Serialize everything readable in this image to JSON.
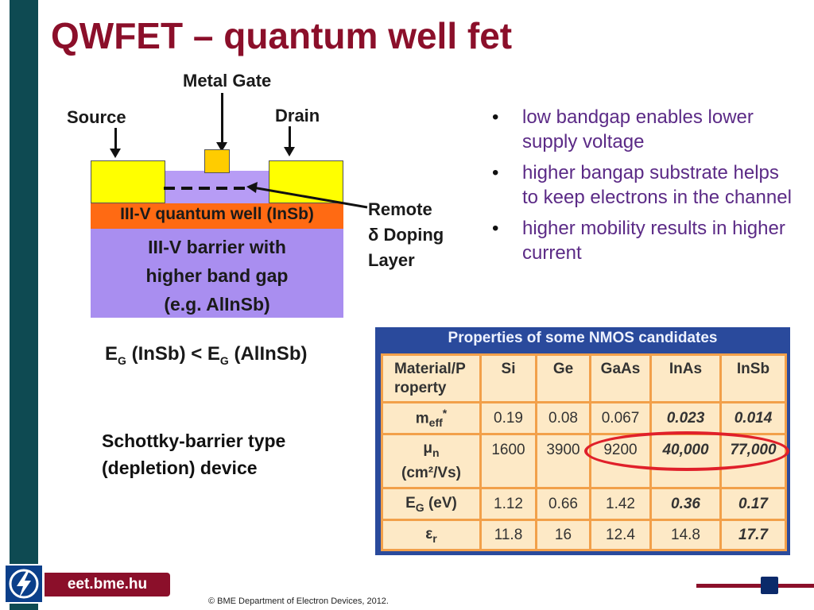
{
  "slide": {
    "title": "QWFET – quantum well fet"
  },
  "diagram": {
    "metal_gate_label": "Metal Gate",
    "source_label": "Source",
    "drain_label": "Drain",
    "quantum_well_label": "III-V quantum well (InSb)",
    "barrier_label_line1": "III-V barrier with",
    "barrier_label_line2": "higher band gap",
    "barrier_label_line3": "(e.g. AlInSb)",
    "remote_label_line1": "Remote",
    "remote_label_line2": "δ Doping",
    "remote_label_line3": "Layer",
    "eg_left": "(InSb) < E",
    "eg_sub": "G",
    "eg_e": "E",
    "eg_right": "(AlInSb)",
    "colors": {
      "contact": "#ffff00",
      "gate": "#ffcc00",
      "quantum_well": "#ff6a13",
      "barrier": "#a98ef0",
      "substrate_top": "#b79cf5"
    }
  },
  "device_note": {
    "line1": "Schottky-barrier type",
    "line2": "(depletion) device"
  },
  "bullets": [
    "low bandgap enables lower supply voltage",
    "higher bangap substrate helps to keep electrons in the channel",
    "higher mobility results in higher current"
  ],
  "bullet_glyph": "•",
  "table": {
    "title": "Properties of some NMOS candidates",
    "header": [
      "Material/P roperty",
      "Si",
      "Ge",
      "GaAs",
      "InAs",
      "InSb"
    ],
    "rows": [
      {
        "label_main": "m",
        "label_sub": "eff",
        "label_sup": "*",
        "label_tail": "",
        "values": [
          "0.19",
          "0.08",
          "0.067",
          "0.023",
          "0.014"
        ],
        "styles": [
          "",
          "",
          "",
          "green",
          "green"
        ]
      },
      {
        "label_main": "μ",
        "label_sub": "n",
        "label_sup": "",
        "label_tail": "(cm²/Vs)",
        "values": [
          "1600",
          "3900",
          "9200",
          "40,000",
          "77,000"
        ],
        "styles": [
          "",
          "",
          "",
          "green",
          "green"
        ]
      },
      {
        "label_main": "E",
        "label_sub": "G",
        "label_sup": "",
        "label_tail": " (eV)",
        "values": [
          "1.12",
          "0.66",
          "1.42",
          "0.36",
          "0.17"
        ],
        "styles": [
          "",
          "",
          "",
          "red",
          "red"
        ]
      },
      {
        "label_main": "ε",
        "label_sub": "r",
        "label_sup": "",
        "label_tail": "",
        "values": [
          "11.8",
          "16",
          "12.4",
          "14.8",
          "17.7"
        ],
        "styles": [
          "",
          "",
          "",
          "",
          "red"
        ]
      }
    ]
  },
  "footer": {
    "url": "eet.bme.hu",
    "copyright": "© BME Department of Electron Devices, 2012.",
    "logo_icon": "lightning-icon"
  }
}
